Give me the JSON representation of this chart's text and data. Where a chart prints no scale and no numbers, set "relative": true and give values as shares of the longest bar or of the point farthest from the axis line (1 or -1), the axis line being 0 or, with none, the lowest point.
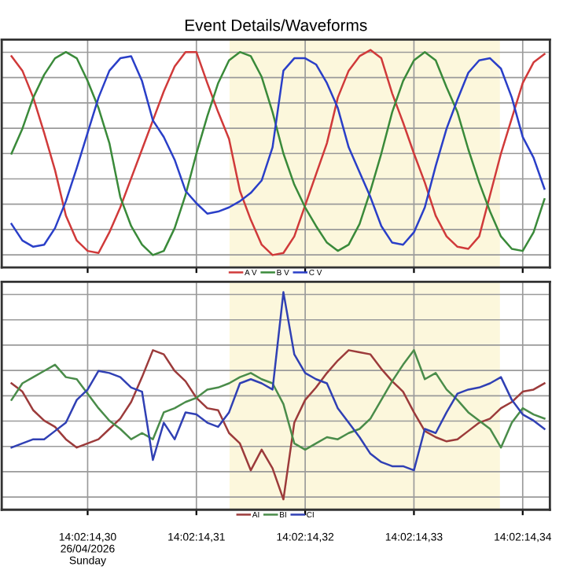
{
  "chart_data": [
    {
      "type": "line",
      "title": "Event Details/Waveforms",
      "relative": true,
      "grid": true,
      "legend": "bottom",
      "tick_labels": false,
      "line_style": "solid",
      "marker": "none",
      "categories": [
        null,
        null,
        null,
        null,
        null,
        null,
        null,
        null,
        null,
        null,
        null,
        null,
        null,
        null,
        null,
        null,
        null,
        null,
        null,
        null,
        null,
        null,
        null,
        null,
        null,
        null,
        null,
        null,
        null,
        null,
        null,
        null,
        null,
        null,
        null,
        null,
        null,
        null,
        null,
        null,
        null,
        null,
        null,
        null,
        null,
        null,
        null,
        null,
        null,
        null
      ],
      "series": [
        {
          "name": "A V",
          "color": "#d03a3a",
          "values": [
            0.97,
            0.9,
            0.77,
            0.6,
            0.42,
            0.2,
            0.08,
            0.03,
            0.02,
            0.12,
            0.24,
            0.38,
            0.52,
            0.66,
            0.8,
            0.92,
            0.99,
            0.99,
            0.84,
            0.7,
            0.57,
            0.32,
            0.18,
            0.06,
            0.01,
            0.02,
            0.1,
            0.25,
            0.4,
            0.55,
            0.77,
            0.9,
            0.97,
            1.0,
            0.96,
            0.79,
            0.65,
            0.5,
            0.36,
            0.2,
            0.1,
            0.05,
            0.04,
            0.1,
            0.3,
            0.5,
            0.67,
            0.84,
            0.94,
            0.98
          ]
        },
        {
          "name": "B V",
          "color": "#3a8a3a",
          "values": [
            0.5,
            0.62,
            0.77,
            0.88,
            0.96,
            0.99,
            0.96,
            0.85,
            0.72,
            0.55,
            0.29,
            0.15,
            0.06,
            0.01,
            0.03,
            0.14,
            0.3,
            0.5,
            0.68,
            0.84,
            0.95,
            0.99,
            0.97,
            0.87,
            0.7,
            0.5,
            0.35,
            0.24,
            0.15,
            0.07,
            0.03,
            0.06,
            0.16,
            0.32,
            0.5,
            0.7,
            0.85,
            0.95,
            0.99,
            0.95,
            0.82,
            0.7,
            0.52,
            0.36,
            0.22,
            0.1,
            0.04,
            0.03,
            0.12,
            0.28
          ]
        },
        {
          "name": "C V",
          "color": "#2a3fc8",
          "values": [
            0.16,
            0.08,
            0.05,
            0.06,
            0.14,
            0.27,
            0.43,
            0.6,
            0.77,
            0.9,
            0.96,
            0.97,
            0.85,
            0.66,
            0.58,
            0.47,
            0.32,
            0.26,
            0.21,
            0.22,
            0.24,
            0.27,
            0.31,
            0.37,
            0.53,
            0.9,
            0.96,
            0.96,
            0.93,
            0.84,
            0.72,
            0.53,
            0.41,
            0.29,
            0.15,
            0.07,
            0.06,
            0.12,
            0.24,
            0.44,
            0.62,
            0.76,
            0.89,
            0.95,
            0.96,
            0.91,
            0.77,
            0.58,
            0.48,
            0.33
          ]
        }
      ]
    },
    {
      "type": "line",
      "relative": true,
      "grid": true,
      "legend": "bottom",
      "tick_labels": "x",
      "line_style": "solid",
      "marker": "none",
      "categories": [
        null,
        null,
        null,
        null,
        null,
        null,
        null,
        "14:02:14,30\n26/04/2026\nSunday",
        null,
        null,
        null,
        null,
        null,
        null,
        null,
        null,
        null,
        "14:02:14,31",
        null,
        null,
        null,
        null,
        null,
        null,
        null,
        null,
        null,
        "14:02:14,32",
        null,
        null,
        null,
        null,
        null,
        null,
        null,
        null,
        null,
        "14:02:14,33",
        null,
        null,
        null,
        null,
        null,
        null,
        null,
        null,
        null,
        "14:02:14,34",
        null,
        null
      ],
      "series": [
        {
          "name": "AI",
          "color": "#9c3b3b",
          "values": [
            0.56,
            0.52,
            0.43,
            0.38,
            0.35,
            0.29,
            0.25,
            0.27,
            0.29,
            0.34,
            0.39,
            0.47,
            0.59,
            0.72,
            0.7,
            0.62,
            0.57,
            0.49,
            0.44,
            0.43,
            0.32,
            0.27,
            0.14,
            0.24,
            0.15,
            0.0,
            0.37,
            0.48,
            0.54,
            0.61,
            0.67,
            0.72,
            0.71,
            0.7,
            0.63,
            0.57,
            0.52,
            0.42,
            0.33,
            0.3,
            0.28,
            0.29,
            0.33,
            0.37,
            0.39,
            0.44,
            0.47,
            0.52,
            0.53,
            0.56
          ]
        },
        {
          "name": "BI",
          "color": "#4a8c4a",
          "values": [
            0.48,
            0.56,
            0.59,
            0.62,
            0.65,
            0.59,
            0.58,
            0.51,
            0.44,
            0.38,
            0.34,
            0.29,
            0.32,
            0.29,
            0.42,
            0.44,
            0.47,
            0.49,
            0.53,
            0.54,
            0.56,
            0.59,
            0.61,
            0.58,
            0.56,
            0.46,
            0.27,
            0.24,
            0.27,
            0.3,
            0.29,
            0.32,
            0.34,
            0.39,
            0.48,
            0.57,
            0.65,
            0.72,
            0.58,
            0.61,
            0.53,
            0.48,
            0.42,
            0.38,
            0.34,
            0.25,
            0.37,
            0.44,
            0.41,
            0.39
          ]
        },
        {
          "name": "CI",
          "color": "#3040b4",
          "values": [
            0.25,
            0.27,
            0.29,
            0.29,
            0.33,
            0.37,
            0.48,
            0.53,
            0.62,
            0.61,
            0.59,
            0.54,
            0.52,
            0.19,
            0.37,
            0.29,
            0.42,
            0.41,
            0.37,
            0.35,
            0.42,
            0.56,
            0.58,
            0.56,
            0.53,
            1.0,
            0.7,
            0.61,
            0.58,
            0.56,
            0.44,
            0.37,
            0.3,
            0.22,
            0.18,
            0.16,
            0.16,
            0.14,
            0.34,
            0.32,
            0.42,
            0.51,
            0.53,
            0.54,
            0.56,
            0.59,
            0.48,
            0.41,
            0.38,
            0.34
          ]
        }
      ]
    }
  ]
}
